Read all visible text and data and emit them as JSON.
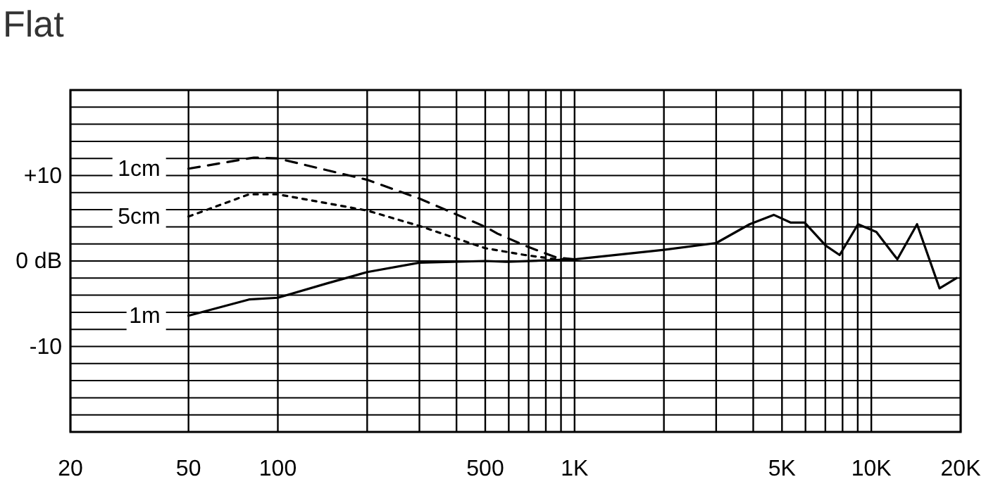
{
  "chart_data": {
    "type": "line",
    "title": "Flat",
    "log": "x",
    "grid": true,
    "xlim": [
      20,
      20000
    ],
    "ylim": [
      -20,
      20
    ],
    "xticks": [
      20,
      50,
      100,
      {
        "value": 200,
        "label": null
      },
      {
        "value": 300,
        "label": null
      },
      {
        "value": 400,
        "label": null
      },
      500,
      {
        "value": 600,
        "label": null
      },
      {
        "value": 700,
        "label": null
      },
      {
        "value": 800,
        "label": null
      },
      {
        "value": 900,
        "label": null
      },
      {
        "value": 1000,
        "label": "1K"
      },
      {
        "value": 2000,
        "label": null
      },
      {
        "value": 3000,
        "label": null
      },
      {
        "value": 4000,
        "label": null
      },
      {
        "value": 5000,
        "label": "5K"
      },
      {
        "value": 6000,
        "label": null
      },
      {
        "value": 7000,
        "label": null
      },
      {
        "value": 8000,
        "label": null
      },
      {
        "value": 9000,
        "label": null
      },
      {
        "value": 10000,
        "label": "10K"
      },
      {
        "value": 20000,
        "label": "20K"
      }
    ],
    "yticks": [
      {
        "value": -20,
        "label": null
      },
      {
        "value": -18,
        "label": null
      },
      {
        "value": -16,
        "label": null
      },
      {
        "value": -14,
        "label": null
      },
      {
        "value": -12,
        "label": null
      },
      -10,
      {
        "value": -8,
        "label": null
      },
      {
        "value": -6,
        "label": null
      },
      {
        "value": -4,
        "label": null
      },
      {
        "value": -2,
        "label": null
      },
      {
        "value": 0,
        "label": "0 dB"
      },
      {
        "value": 2,
        "label": null
      },
      {
        "value": 4,
        "label": null
      },
      {
        "value": 6,
        "label": null
      },
      {
        "value": 8,
        "label": null
      },
      {
        "value": 10,
        "label": "+10"
      },
      {
        "value": 12,
        "label": null
      },
      {
        "value": 14,
        "label": null
      },
      {
        "value": 16,
        "label": null
      },
      {
        "value": 18,
        "label": null
      },
      {
        "value": 20,
        "label": null
      }
    ],
    "series": [
      {
        "name": "1cm",
        "color": "#000000",
        "line_style": "dashed",
        "x": [
          50,
          83,
          100,
          200,
          300,
          500,
          550,
          680,
          870,
          1000
        ],
        "values": [
          10.8,
          12.1,
          12,
          9.5,
          7.3,
          4,
          3.2,
          1.8,
          0.4,
          0.2
        ]
      },
      {
        "name": "5cm",
        "color": "#000000",
        "line_style": "dotted",
        "x": [
          50,
          80,
          100,
          200,
          300,
          500,
          680,
          870,
          1000
        ],
        "values": [
          5.2,
          7.8,
          7.8,
          5.9,
          4.1,
          1.5,
          0.7,
          0.2,
          0.2
        ]
      },
      {
        "name": "1m",
        "color": "#000000",
        "line_style": "solid",
        "x": [
          50,
          80,
          100,
          147,
          200,
          300,
          500,
          590,
          1000,
          2000,
          3000,
          3890,
          4690,
          5340,
          5960,
          7020,
          7820,
          9020,
          10400,
          12240,
          14260,
          16980,
          19360
        ],
        "values": [
          -6.4,
          -4.5,
          -4.3,
          -2.6,
          -1.3,
          -0.2,
          0,
          -0.1,
          0.2,
          1.3,
          2.1,
          4.3,
          5.4,
          4.5,
          4.5,
          1.8,
          0.7,
          4.3,
          3.4,
          0.2,
          4.3,
          -3.2,
          -2
        ]
      }
    ]
  }
}
